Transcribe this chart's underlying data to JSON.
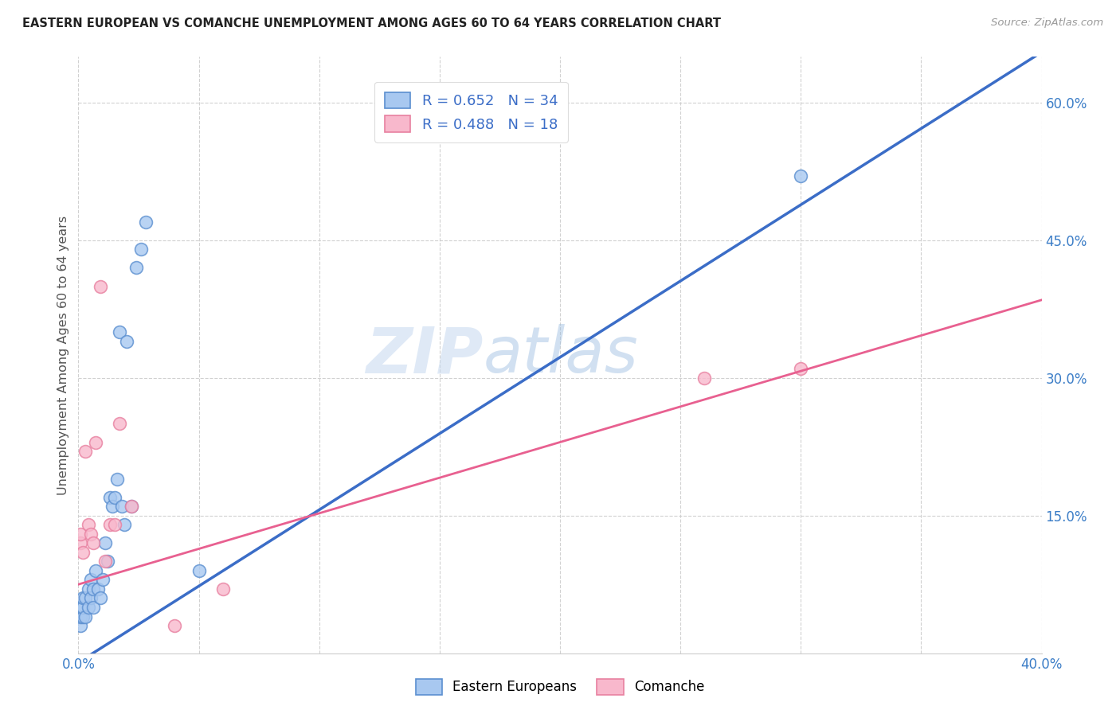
{
  "title": "EASTERN EUROPEAN VS COMANCHE UNEMPLOYMENT AMONG AGES 60 TO 64 YEARS CORRELATION CHART",
  "source": "Source: ZipAtlas.com",
  "ylabel": "Unemployment Among Ages 60 to 64 years",
  "xlim": [
    0.0,
    0.4
  ],
  "ylim": [
    0.0,
    0.65
  ],
  "xticks": [
    0.0,
    0.05,
    0.1,
    0.15,
    0.2,
    0.25,
    0.3,
    0.35,
    0.4
  ],
  "xticklabels": [
    "0.0%",
    "",
    "",
    "",
    "",
    "",
    "",
    "",
    "40.0%"
  ],
  "ytick_positions": [
    0.15,
    0.3,
    0.45,
    0.6
  ],
  "yticklabels_right": [
    "15.0%",
    "30.0%",
    "45.0%",
    "60.0%"
  ],
  "blue_color": "#A8C8F0",
  "blue_edge_color": "#5B8FD0",
  "blue_line_color": "#3B6DC7",
  "pink_color": "#F8B8CC",
  "pink_edge_color": "#E880A0",
  "pink_line_color": "#E86090",
  "blue_r": 0.652,
  "blue_n": 34,
  "pink_r": 0.488,
  "pink_n": 18,
  "watermark_zip": "ZIP",
  "watermark_atlas": "atlas",
  "legend_label_blue": "Eastern Europeans",
  "legend_label_pink": "Comanche",
  "blue_line_x0": 0.0,
  "blue_line_y0": -0.01,
  "blue_line_x1": 0.4,
  "blue_line_y1": 0.655,
  "pink_line_x0": 0.0,
  "pink_line_y0": 0.075,
  "pink_line_x1": 0.4,
  "pink_line_y1": 0.385,
  "blue_scatter_x": [
    0.001,
    0.001,
    0.001,
    0.002,
    0.002,
    0.002,
    0.003,
    0.003,
    0.004,
    0.004,
    0.005,
    0.005,
    0.006,
    0.006,
    0.007,
    0.008,
    0.009,
    0.01,
    0.011,
    0.012,
    0.013,
    0.014,
    0.015,
    0.016,
    0.017,
    0.018,
    0.019,
    0.02,
    0.022,
    0.024,
    0.026,
    0.028,
    0.05,
    0.3
  ],
  "blue_scatter_y": [
    0.03,
    0.04,
    0.05,
    0.04,
    0.05,
    0.06,
    0.04,
    0.06,
    0.05,
    0.07,
    0.06,
    0.08,
    0.05,
    0.07,
    0.09,
    0.07,
    0.06,
    0.08,
    0.12,
    0.1,
    0.17,
    0.16,
    0.17,
    0.19,
    0.35,
    0.16,
    0.14,
    0.34,
    0.16,
    0.42,
    0.44,
    0.47,
    0.09,
    0.52
  ],
  "pink_scatter_x": [
    0.001,
    0.001,
    0.002,
    0.003,
    0.004,
    0.005,
    0.006,
    0.007,
    0.009,
    0.011,
    0.013,
    0.015,
    0.017,
    0.022,
    0.04,
    0.06,
    0.26,
    0.3
  ],
  "pink_scatter_y": [
    0.12,
    0.13,
    0.11,
    0.22,
    0.14,
    0.13,
    0.12,
    0.23,
    0.4,
    0.1,
    0.14,
    0.14,
    0.25,
    0.16,
    0.03,
    0.07,
    0.3,
    0.31
  ]
}
